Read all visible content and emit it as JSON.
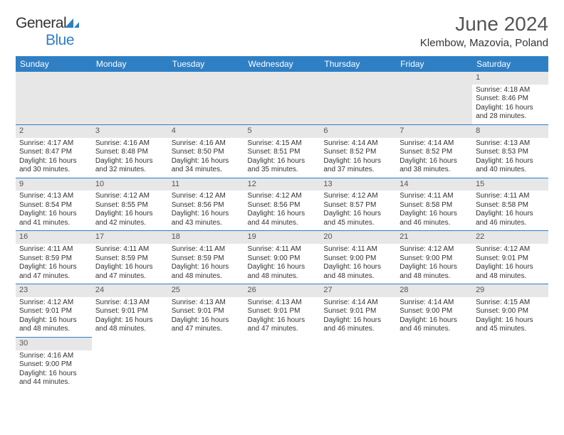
{
  "logo": {
    "word1": "General",
    "word2": "Blue"
  },
  "title": "June 2024",
  "subtitle": "Klembow, Mazovia, Poland",
  "colors": {
    "header_bg": "#2f7fc4",
    "header_fg": "#ffffff",
    "daynum_bg": "#e7e7e7",
    "rule": "#2f7fc4",
    "text": "#333333"
  },
  "weekdays": [
    "Sunday",
    "Monday",
    "Tuesday",
    "Wednesday",
    "Thursday",
    "Friday",
    "Saturday"
  ],
  "weeks": [
    [
      null,
      null,
      null,
      null,
      null,
      null,
      {
        "n": "1",
        "sr": "Sunrise: 4:18 AM",
        "ss": "Sunset: 8:46 PM",
        "d1": "Daylight: 16 hours",
        "d2": "and 28 minutes."
      }
    ],
    [
      {
        "n": "2",
        "sr": "Sunrise: 4:17 AM",
        "ss": "Sunset: 8:47 PM",
        "d1": "Daylight: 16 hours",
        "d2": "and 30 minutes."
      },
      {
        "n": "3",
        "sr": "Sunrise: 4:16 AM",
        "ss": "Sunset: 8:48 PM",
        "d1": "Daylight: 16 hours",
        "d2": "and 32 minutes."
      },
      {
        "n": "4",
        "sr": "Sunrise: 4:16 AM",
        "ss": "Sunset: 8:50 PM",
        "d1": "Daylight: 16 hours",
        "d2": "and 34 minutes."
      },
      {
        "n": "5",
        "sr": "Sunrise: 4:15 AM",
        "ss": "Sunset: 8:51 PM",
        "d1": "Daylight: 16 hours",
        "d2": "and 35 minutes."
      },
      {
        "n": "6",
        "sr": "Sunrise: 4:14 AM",
        "ss": "Sunset: 8:52 PM",
        "d1": "Daylight: 16 hours",
        "d2": "and 37 minutes."
      },
      {
        "n": "7",
        "sr": "Sunrise: 4:14 AM",
        "ss": "Sunset: 8:52 PM",
        "d1": "Daylight: 16 hours",
        "d2": "and 38 minutes."
      },
      {
        "n": "8",
        "sr": "Sunrise: 4:13 AM",
        "ss": "Sunset: 8:53 PM",
        "d1": "Daylight: 16 hours",
        "d2": "and 40 minutes."
      }
    ],
    [
      {
        "n": "9",
        "sr": "Sunrise: 4:13 AM",
        "ss": "Sunset: 8:54 PM",
        "d1": "Daylight: 16 hours",
        "d2": "and 41 minutes."
      },
      {
        "n": "10",
        "sr": "Sunrise: 4:12 AM",
        "ss": "Sunset: 8:55 PM",
        "d1": "Daylight: 16 hours",
        "d2": "and 42 minutes."
      },
      {
        "n": "11",
        "sr": "Sunrise: 4:12 AM",
        "ss": "Sunset: 8:56 PM",
        "d1": "Daylight: 16 hours",
        "d2": "and 43 minutes."
      },
      {
        "n": "12",
        "sr": "Sunrise: 4:12 AM",
        "ss": "Sunset: 8:56 PM",
        "d1": "Daylight: 16 hours",
        "d2": "and 44 minutes."
      },
      {
        "n": "13",
        "sr": "Sunrise: 4:12 AM",
        "ss": "Sunset: 8:57 PM",
        "d1": "Daylight: 16 hours",
        "d2": "and 45 minutes."
      },
      {
        "n": "14",
        "sr": "Sunrise: 4:11 AM",
        "ss": "Sunset: 8:58 PM",
        "d1": "Daylight: 16 hours",
        "d2": "and 46 minutes."
      },
      {
        "n": "15",
        "sr": "Sunrise: 4:11 AM",
        "ss": "Sunset: 8:58 PM",
        "d1": "Daylight: 16 hours",
        "d2": "and 46 minutes."
      }
    ],
    [
      {
        "n": "16",
        "sr": "Sunrise: 4:11 AM",
        "ss": "Sunset: 8:59 PM",
        "d1": "Daylight: 16 hours",
        "d2": "and 47 minutes."
      },
      {
        "n": "17",
        "sr": "Sunrise: 4:11 AM",
        "ss": "Sunset: 8:59 PM",
        "d1": "Daylight: 16 hours",
        "d2": "and 47 minutes."
      },
      {
        "n": "18",
        "sr": "Sunrise: 4:11 AM",
        "ss": "Sunset: 8:59 PM",
        "d1": "Daylight: 16 hours",
        "d2": "and 48 minutes."
      },
      {
        "n": "19",
        "sr": "Sunrise: 4:11 AM",
        "ss": "Sunset: 9:00 PM",
        "d1": "Daylight: 16 hours",
        "d2": "and 48 minutes."
      },
      {
        "n": "20",
        "sr": "Sunrise: 4:11 AM",
        "ss": "Sunset: 9:00 PM",
        "d1": "Daylight: 16 hours",
        "d2": "and 48 minutes."
      },
      {
        "n": "21",
        "sr": "Sunrise: 4:12 AM",
        "ss": "Sunset: 9:00 PM",
        "d1": "Daylight: 16 hours",
        "d2": "and 48 minutes."
      },
      {
        "n": "22",
        "sr": "Sunrise: 4:12 AM",
        "ss": "Sunset: 9:01 PM",
        "d1": "Daylight: 16 hours",
        "d2": "and 48 minutes."
      }
    ],
    [
      {
        "n": "23",
        "sr": "Sunrise: 4:12 AM",
        "ss": "Sunset: 9:01 PM",
        "d1": "Daylight: 16 hours",
        "d2": "and 48 minutes."
      },
      {
        "n": "24",
        "sr": "Sunrise: 4:13 AM",
        "ss": "Sunset: 9:01 PM",
        "d1": "Daylight: 16 hours",
        "d2": "and 48 minutes."
      },
      {
        "n": "25",
        "sr": "Sunrise: 4:13 AM",
        "ss": "Sunset: 9:01 PM",
        "d1": "Daylight: 16 hours",
        "d2": "and 47 minutes."
      },
      {
        "n": "26",
        "sr": "Sunrise: 4:13 AM",
        "ss": "Sunset: 9:01 PM",
        "d1": "Daylight: 16 hours",
        "d2": "and 47 minutes."
      },
      {
        "n": "27",
        "sr": "Sunrise: 4:14 AM",
        "ss": "Sunset: 9:01 PM",
        "d1": "Daylight: 16 hours",
        "d2": "and 46 minutes."
      },
      {
        "n": "28",
        "sr": "Sunrise: 4:14 AM",
        "ss": "Sunset: 9:00 PM",
        "d1": "Daylight: 16 hours",
        "d2": "and 46 minutes."
      },
      {
        "n": "29",
        "sr": "Sunrise: 4:15 AM",
        "ss": "Sunset: 9:00 PM",
        "d1": "Daylight: 16 hours",
        "d2": "and 45 minutes."
      }
    ],
    [
      {
        "n": "30",
        "sr": "Sunrise: 4:16 AM",
        "ss": "Sunset: 9:00 PM",
        "d1": "Daylight: 16 hours",
        "d2": "and 44 minutes."
      },
      null,
      null,
      null,
      null,
      null,
      null
    ]
  ]
}
